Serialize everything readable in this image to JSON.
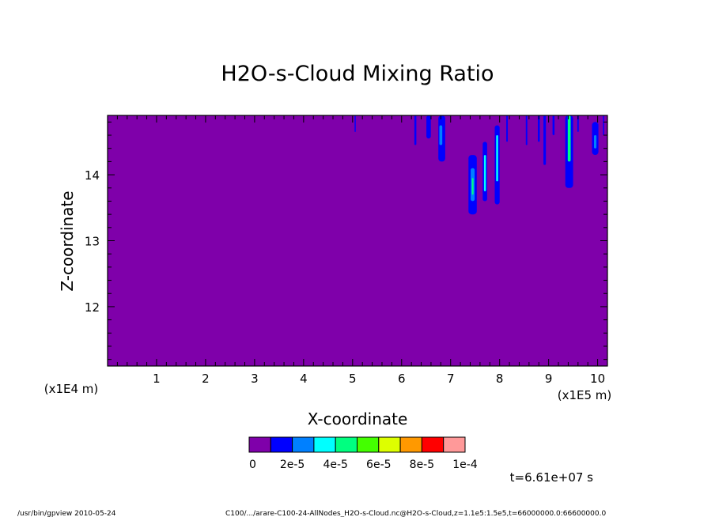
{
  "chart_data": {
    "type": "heatmap",
    "title": "H2O-s-Cloud Mixing Ratio",
    "xlabel": "X-coordinate",
    "ylabel": "Z-coordinate",
    "x_unit_label": "(x1E5 m)",
    "y_unit_label": "(x1E4 m)",
    "xlim": [
      0,
      10.2
    ],
    "ylim": [
      11.1,
      14.9
    ],
    "x_ticks": [
      1,
      2,
      3,
      4,
      5,
      6,
      7,
      8,
      9,
      10
    ],
    "y_ticks": [
      12,
      13,
      14
    ],
    "background_color": "#7f00aa",
    "colorbar": {
      "colors": [
        "#7f00aa",
        "#0000ff",
        "#0080ff",
        "#00ffff",
        "#00ff80",
        "#44ff00",
        "#ddff00",
        "#ff9900",
        "#ff0000",
        "#ff9999"
      ],
      "labels": [
        "0",
        "2e-5",
        "4e-5",
        "6e-5",
        "8e-5",
        "1e-4"
      ]
    },
    "features": [
      {
        "x": 5.05,
        "ytop": 14.9,
        "ybot": 14.65,
        "w": 0.02,
        "color": "#0000ff"
      },
      {
        "x": 6.28,
        "ytop": 14.9,
        "ybot": 14.45,
        "w": 0.04,
        "color": "#0000ff"
      },
      {
        "x": 6.55,
        "ytop": 14.9,
        "ybot": 14.55,
        "w": 0.09,
        "color": "#0000ff"
      },
      {
        "x": 6.82,
        "ytop": 14.9,
        "ybot": 14.2,
        "w": 0.14,
        "color": "#0000ff"
      },
      {
        "x": 6.8,
        "ytop": 14.75,
        "ybot": 14.45,
        "w": 0.06,
        "color": "#0080ff"
      },
      {
        "x": 7.45,
        "ytop": 14.3,
        "ybot": 13.4,
        "w": 0.17,
        "color": "#0000ff"
      },
      {
        "x": 7.45,
        "ytop": 14.1,
        "ybot": 13.6,
        "w": 0.08,
        "color": "#0080ff"
      },
      {
        "x": 7.45,
        "ytop": 13.95,
        "ybot": 13.7,
        "w": 0.03,
        "color": "#00ff80"
      },
      {
        "x": 7.7,
        "ytop": 14.5,
        "ybot": 13.6,
        "w": 0.09,
        "color": "#0000ff"
      },
      {
        "x": 7.7,
        "ytop": 14.3,
        "ybot": 13.75,
        "w": 0.04,
        "color": "#00ffff"
      },
      {
        "x": 7.95,
        "ytop": 14.75,
        "ybot": 13.55,
        "w": 0.1,
        "color": "#0000ff"
      },
      {
        "x": 7.95,
        "ytop": 14.6,
        "ybot": 13.9,
        "w": 0.04,
        "color": "#00ffff"
      },
      {
        "x": 8.15,
        "ytop": 14.9,
        "ybot": 14.5,
        "w": 0.03,
        "color": "#0000ff"
      },
      {
        "x": 8.55,
        "ytop": 14.9,
        "ybot": 14.45,
        "w": 0.03,
        "color": "#0000ff"
      },
      {
        "x": 8.8,
        "ytop": 14.9,
        "ybot": 14.5,
        "w": 0.04,
        "color": "#0000ff"
      },
      {
        "x": 8.92,
        "ytop": 14.9,
        "ybot": 14.15,
        "w": 0.05,
        "color": "#0000ff"
      },
      {
        "x": 9.1,
        "ytop": 14.9,
        "ybot": 14.6,
        "w": 0.04,
        "color": "#0000ff"
      },
      {
        "x": 9.42,
        "ytop": 14.9,
        "ybot": 13.8,
        "w": 0.16,
        "color": "#0000ff"
      },
      {
        "x": 9.42,
        "ytop": 14.9,
        "ybot": 14.2,
        "w": 0.06,
        "color": "#00ff80"
      },
      {
        "x": 9.6,
        "ytop": 14.9,
        "ybot": 14.65,
        "w": 0.03,
        "color": "#0000ff"
      },
      {
        "x": 9.95,
        "ytop": 14.8,
        "ybot": 14.3,
        "w": 0.13,
        "color": "#0000ff"
      },
      {
        "x": 9.95,
        "ytop": 14.6,
        "ybot": 14.4,
        "w": 0.05,
        "color": "#0080ff"
      },
      {
        "x": 10.12,
        "ytop": 14.9,
        "ybot": 14.6,
        "w": 0.02,
        "color": "#0000ff"
      }
    ]
  },
  "time_label": "t=6.61e+07 s",
  "footer": {
    "left": "/usr/bin/gpview  2010-05-24",
    "right": "C100/.../arare-C100-24-AllNodes_H2O-s-Cloud.nc@H2O-s-Cloud,z=1.1e5:1.5e5,t=66000000.0:66600000.0"
  }
}
